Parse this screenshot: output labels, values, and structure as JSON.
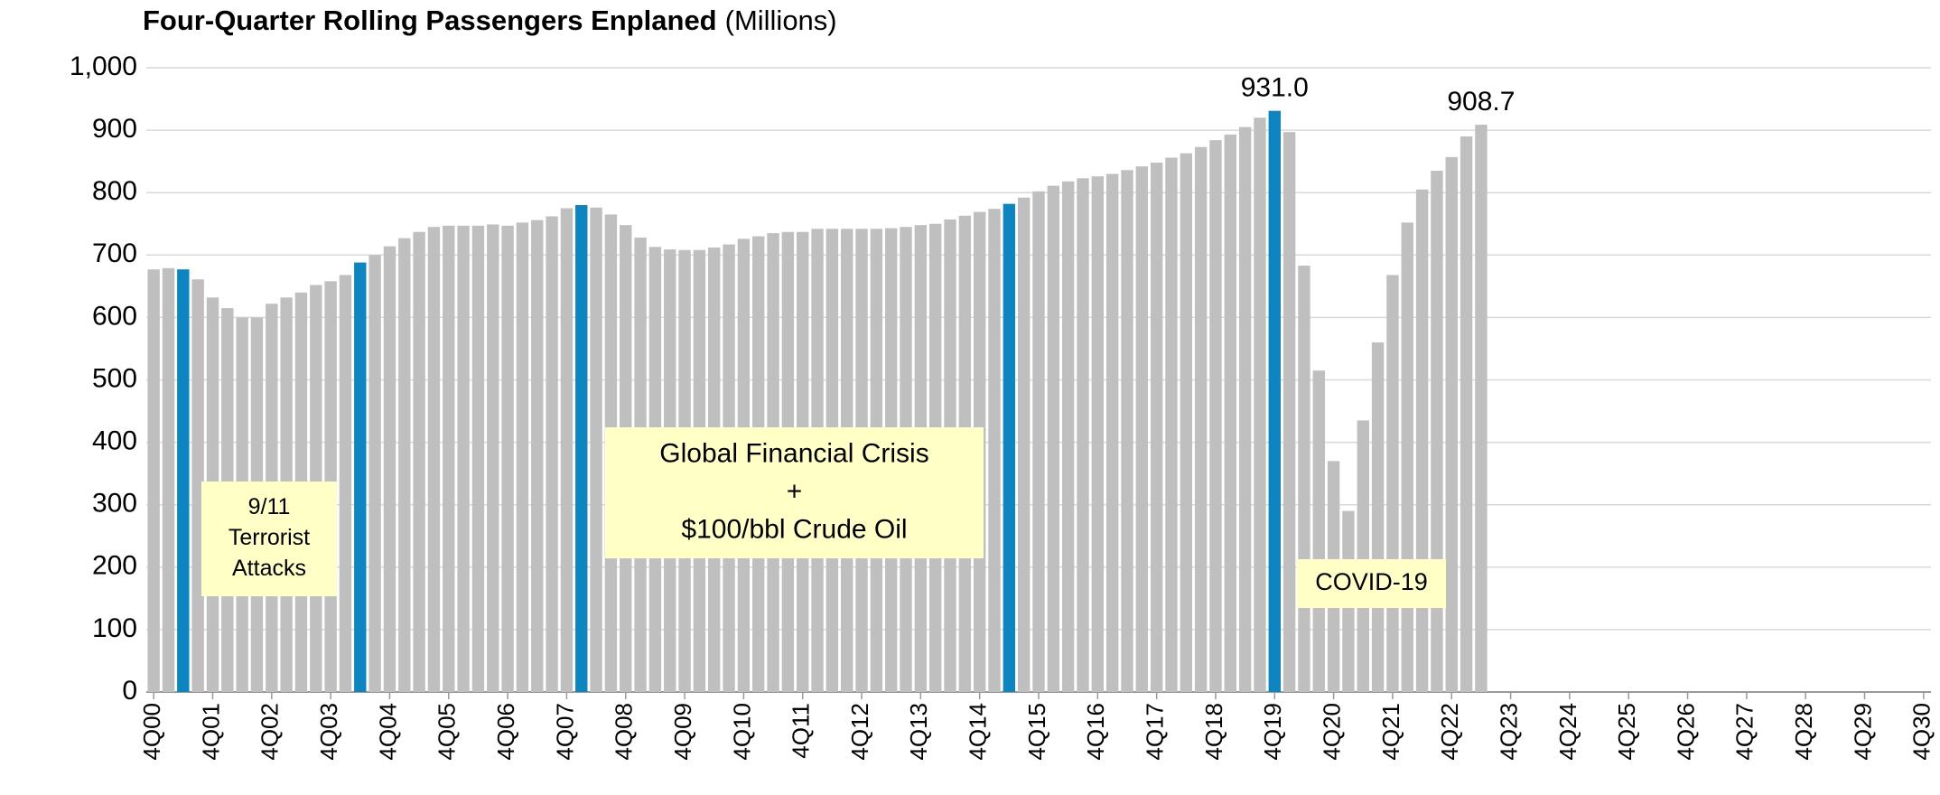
{
  "chart_data": {
    "type": "bar",
    "title": "Four-Quarter Rolling Passengers Enplaned",
    "subtitle": "(Millions)",
    "categories": [
      "4Q00",
      null,
      null,
      null,
      "4Q01",
      null,
      null,
      null,
      "4Q02",
      null,
      null,
      null,
      "4Q03",
      null,
      null,
      null,
      "4Q04",
      null,
      null,
      null,
      "4Q05",
      null,
      null,
      null,
      "4Q06",
      null,
      null,
      null,
      "4Q07",
      null,
      null,
      null,
      "4Q08",
      null,
      null,
      null,
      "4Q09",
      null,
      null,
      null,
      "4Q10",
      null,
      null,
      null,
      "4Q11",
      null,
      null,
      null,
      "4Q12",
      null,
      null,
      null,
      "4Q13",
      null,
      null,
      null,
      "4Q14",
      null,
      null,
      null,
      "4Q15",
      null,
      null,
      null,
      "4Q16",
      null,
      null,
      null,
      "4Q17",
      null,
      null,
      null,
      "4Q18",
      null,
      null,
      null,
      "4Q19",
      null,
      null,
      null,
      "4Q20",
      null,
      null,
      null,
      "4Q21",
      null,
      null,
      null,
      "4Q22",
      null,
      null,
      null,
      "4Q23",
      null,
      null,
      null,
      "4Q24",
      null,
      null,
      null,
      "4Q25",
      null,
      null,
      null,
      "4Q26",
      null,
      null,
      null,
      "4Q27",
      null,
      null,
      null,
      "4Q28",
      null,
      null,
      null,
      "4Q29",
      null,
      null,
      null,
      "4Q30"
    ],
    "values": [
      677,
      679,
      677,
      661,
      632,
      615,
      600,
      600,
      622,
      632,
      640,
      652,
      658,
      668,
      688,
      700,
      714,
      727,
      737,
      745,
      747,
      747,
      747,
      749,
      747,
      752,
      756,
      762,
      775,
      780,
      776,
      765,
      748,
      728,
      713,
      709,
      708,
      708,
      712,
      717,
      726,
      730,
      735,
      737,
      737,
      742,
      742,
      742,
      742,
      742,
      743,
      745,
      748,
      750,
      757,
      763,
      769,
      774,
      782,
      792,
      802,
      811,
      818,
      823,
      826,
      830,
      836,
      842,
      848,
      856,
      863,
      873,
      884,
      893,
      905,
      920,
      931,
      897,
      683,
      515,
      370,
      290,
      435,
      560,
      668,
      752,
      805,
      835,
      857,
      890,
      908.7,
      null,
      null,
      null,
      null,
      null,
      null,
      null,
      null,
      null,
      null,
      null,
      null,
      null,
      null,
      null,
      null,
      null,
      null,
      null,
      null,
      null,
      null,
      null,
      null,
      null,
      null,
      null,
      null,
      null,
      null
    ],
    "value_labels": [
      null,
      null,
      null,
      null,
      null,
      null,
      null,
      null,
      null,
      null,
      null,
      null,
      null,
      null,
      null,
      null,
      null,
      null,
      null,
      null,
      null,
      null,
      null,
      null,
      null,
      null,
      null,
      null,
      null,
      null,
      null,
      null,
      null,
      null,
      null,
      null,
      null,
      null,
      null,
      null,
      null,
      null,
      null,
      null,
      null,
      null,
      null,
      null,
      null,
      null,
      null,
      null,
      null,
      null,
      null,
      null,
      null,
      null,
      null,
      null,
      null,
      null,
      null,
      null,
      null,
      null,
      null,
      null,
      null,
      null,
      null,
      null,
      null,
      null,
      null,
      null,
      "931.0",
      null,
      null,
      null,
      null,
      null,
      null,
      null,
      null,
      null,
      null,
      null,
      null,
      null,
      "908.7",
      null,
      null,
      null,
      null,
      null,
      null,
      null,
      null,
      null,
      null,
      null,
      null,
      null,
      null,
      null,
      null,
      null,
      null,
      null,
      null,
      null,
      null,
      null,
      null,
      null,
      null,
      null,
      null,
      null,
      null
    ],
    "color": "#bfbfbf",
    "highlight_color": "#0c85c1",
    "highlighted": [
      2,
      14,
      29,
      58,
      76
    ],
    "ylim": [
      0,
      1000
    ],
    "yticks": [
      0,
      100,
      200,
      300,
      400,
      500,
      600,
      700,
      800,
      900,
      {
        "value": 1000,
        "label": "1,000"
      }
    ],
    "grid": true,
    "annotations": [
      {
        "lines": [
          "9/11",
          "Terrorist",
          "Attacks"
        ]
      },
      {
        "lines": [
          "Global Financial Crisis",
          "+",
          "$100/bbl Crude Oil"
        ]
      },
      {
        "lines": [
          "COVID-19"
        ]
      }
    ]
  }
}
